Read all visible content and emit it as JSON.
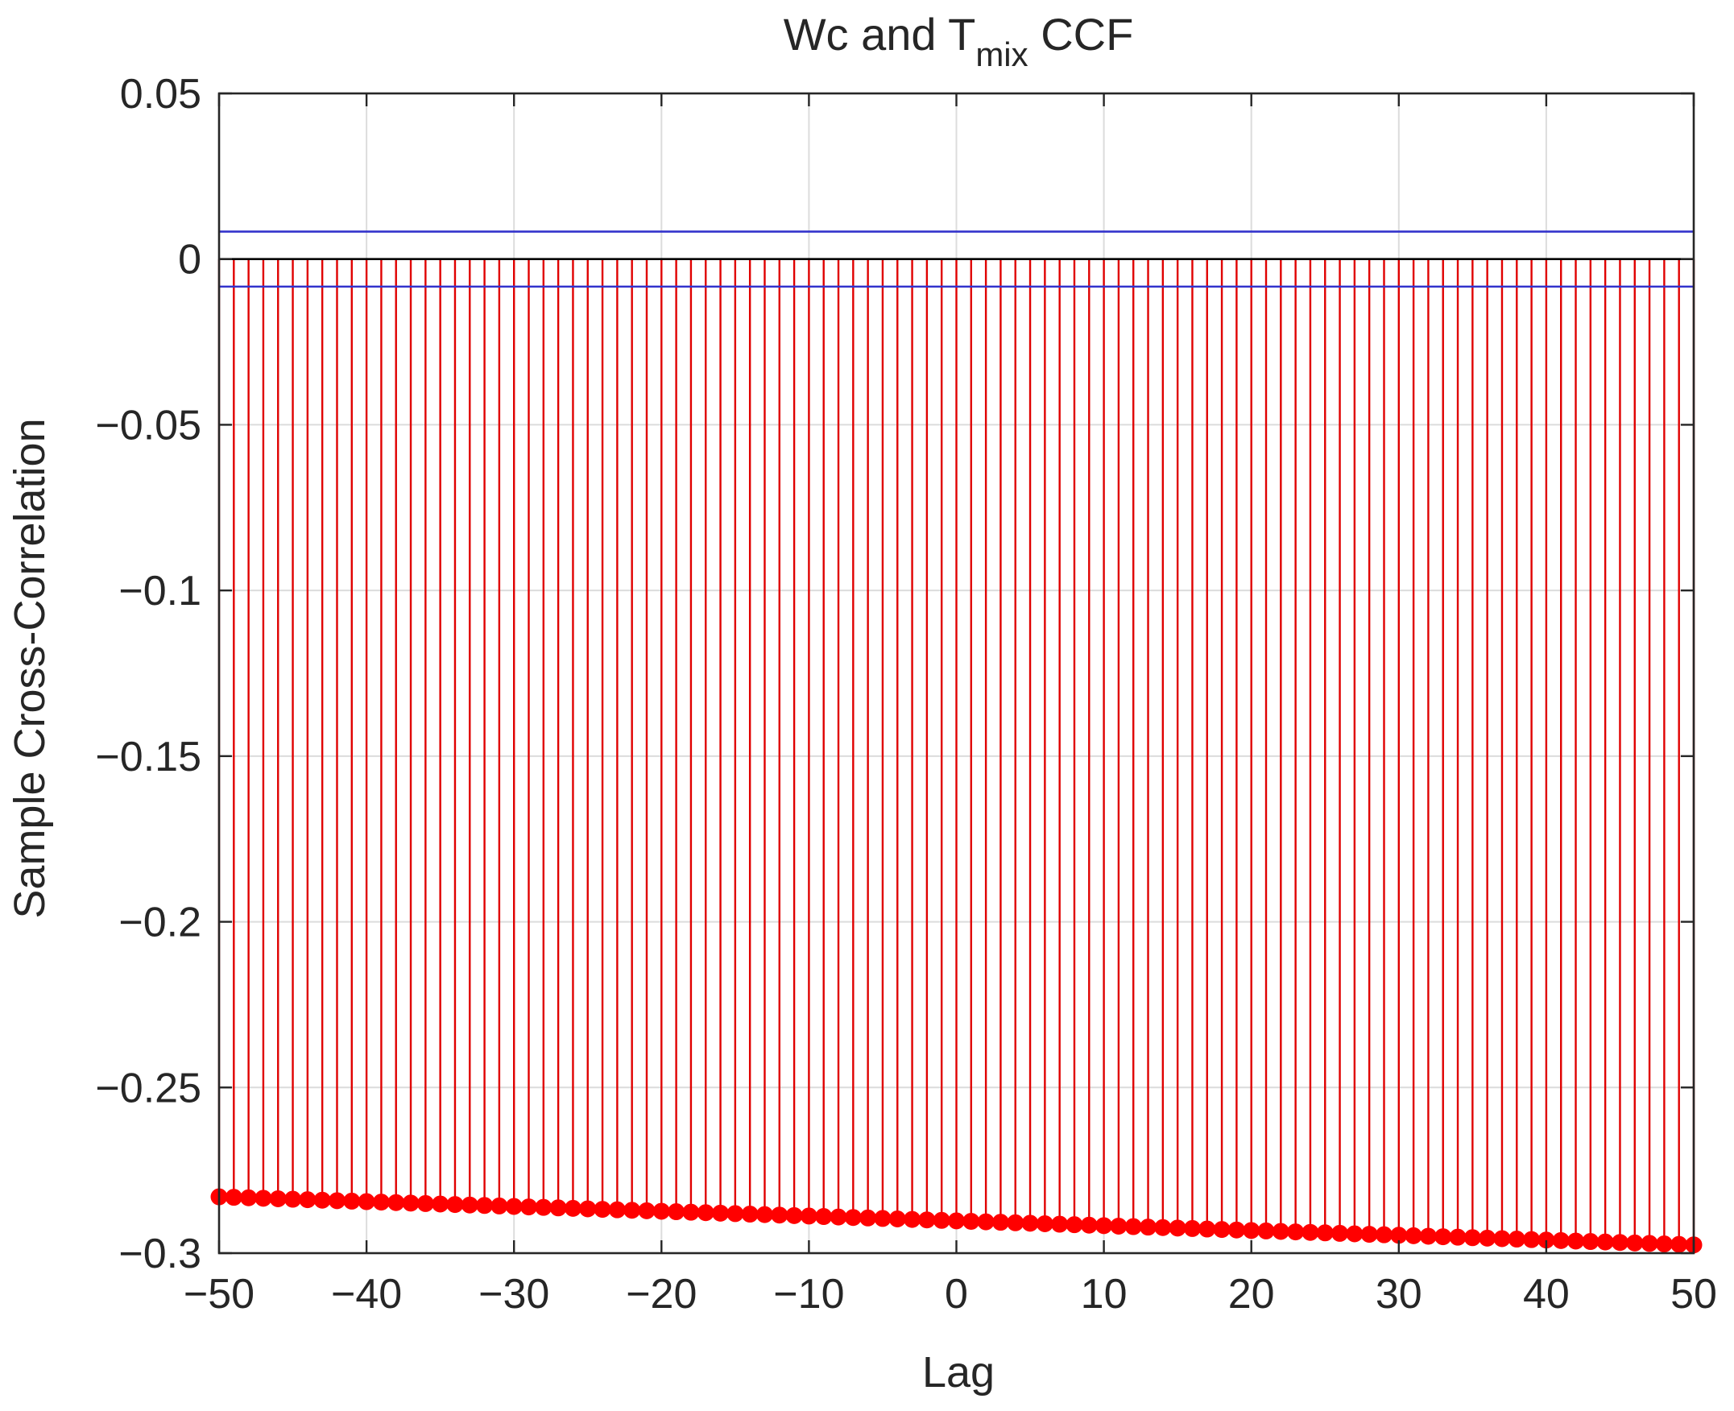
{
  "chart_data": {
    "type": "stem",
    "title": {
      "prefix": "Wc and T",
      "subscript": "mix",
      "suffix": " CCF"
    },
    "xlabel": "Lag",
    "ylabel": "Sample Cross-Correlation",
    "xlim": [
      -50,
      50
    ],
    "ylim": [
      -0.3,
      0.05
    ],
    "xticks": [
      -50,
      -40,
      -30,
      -20,
      -10,
      0,
      10,
      20,
      30,
      40,
      50
    ],
    "xtick_labels": [
      "−50",
      "−40",
      "−30",
      "−20",
      "−10",
      "0",
      "10",
      "20",
      "30",
      "40",
      "50"
    ],
    "yticks": [
      0.05,
      0,
      -0.05,
      -0.1,
      -0.15,
      -0.2,
      -0.25,
      -0.3
    ],
    "ytick_labels": [
      "0.05",
      "0",
      "−0.05",
      "−0.1",
      "−0.15",
      "−0.2",
      "−0.25",
      "−0.3"
    ],
    "grid": true,
    "lags": {
      "start": -50,
      "end": 50,
      "step": 1
    },
    "ccf_trend": {
      "at_lag_start": -0.283,
      "at_lag_end": -0.2975
    },
    "confidence_bounds": [
      0.0083,
      -0.0083
    ],
    "colors": {
      "stem": "#e00000",
      "marker": "#ff0000",
      "bounds": "#3333cc",
      "grid": "#dcdcdc",
      "axis": "#262626"
    }
  }
}
